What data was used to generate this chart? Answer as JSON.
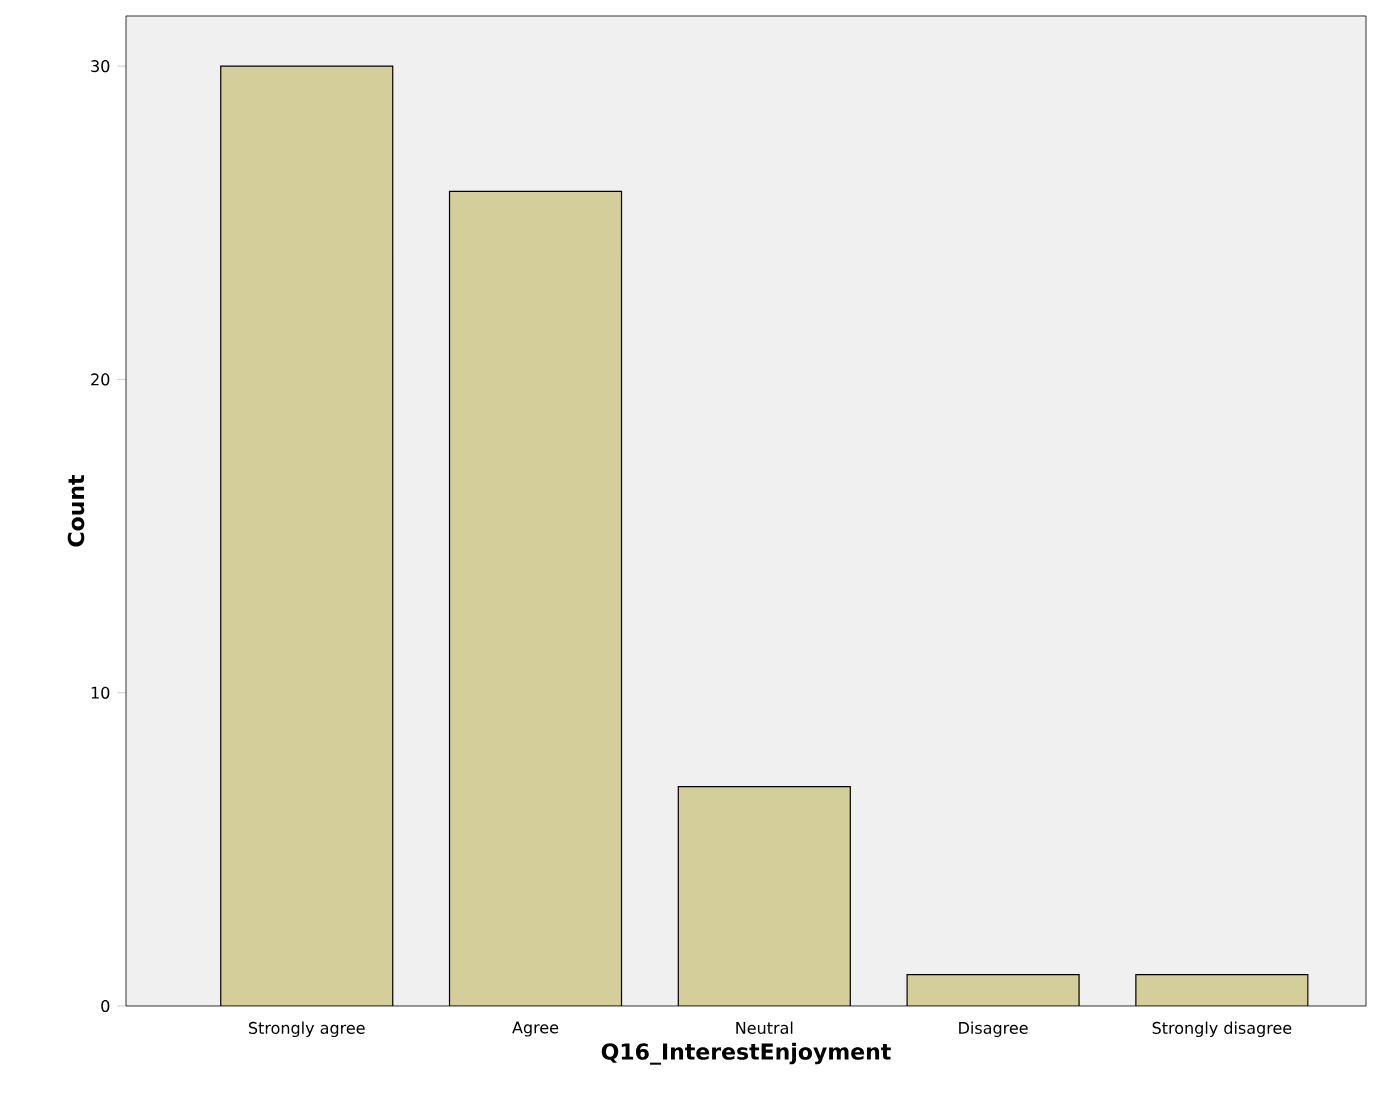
{
  "chart_data": {
    "type": "bar",
    "xlabel": "Q16_InterestEnjoyment",
    "ylabel": "Count",
    "categories": [
      "Strongly agree",
      "Agree",
      "Neutral",
      "Disagree",
      "Strongly disagree"
    ],
    "values": [
      30,
      26,
      7,
      1,
      1
    ],
    "color": "#d3ce9a",
    "ylim": [
      0,
      31.6
    ],
    "yticks": [
      0,
      10,
      20,
      30
    ]
  }
}
